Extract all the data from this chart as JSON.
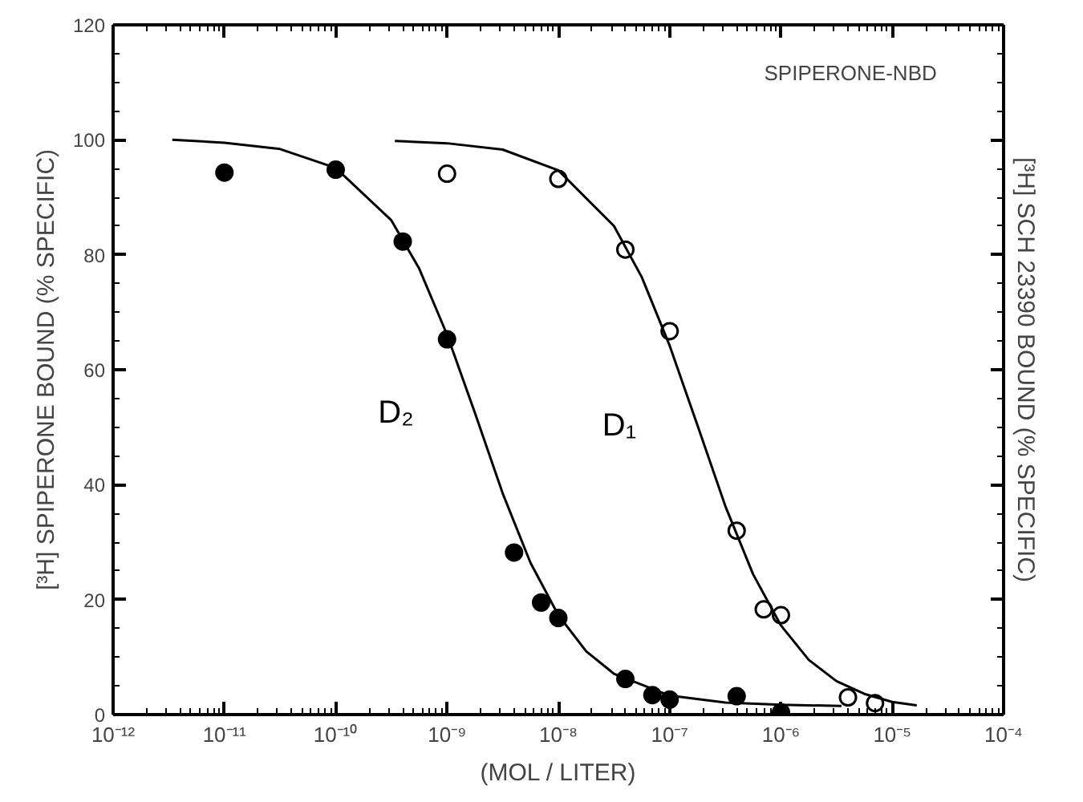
{
  "chart_data": {
    "type": "scatter",
    "annotations": [
      "SPIPERONE-NBD"
    ],
    "xlabel": "(MOL / LITER)",
    "ylabel": "[³H] SPIPERONE BOUND (% SPECIFIC)",
    "y2label": "[³H] SCH 23390 BOUND (% SPECIFIC)",
    "log": "x",
    "grid": false,
    "xlim": [
      1e-12,
      0.0001
    ],
    "xticks": [
      {
        "value": 1e-12,
        "label": "10⁻¹²"
      },
      {
        "value": 1e-11,
        "label": "10⁻¹¹"
      },
      {
        "value": 1e-10,
        "label": "10⁻¹⁰"
      },
      {
        "value": 1e-09,
        "label": "10⁻⁹"
      },
      {
        "value": 1e-08,
        "label": "10⁻⁸"
      },
      {
        "value": 1e-07,
        "label": "10⁻⁷"
      },
      {
        "value": 1e-06,
        "label": "10⁻⁶"
      },
      {
        "value": 1e-05,
        "label": "10⁻⁵"
      },
      {
        "value": 0.0001,
        "label": "10⁻⁴"
      }
    ],
    "ylim": [
      0,
      120
    ],
    "yticks": [
      0,
      20,
      40,
      60,
      80,
      100,
      120
    ],
    "series": [
      {
        "marker": "circle",
        "color": "#000000",
        "x": [
          1e-11,
          1e-10,
          4e-10,
          1e-09,
          4e-09,
          7e-09,
          1e-08,
          4e-08,
          7e-08,
          1e-07,
          4e-07,
          1e-06
        ],
        "values": [
          94.3,
          94.8,
          82.3,
          65.3,
          28.2,
          19.5,
          16.8,
          6.2,
          3.4,
          2.6,
          3.2,
          0.4
        ]
      },
      {
        "marker": "circle_open",
        "color": "#000000",
        "x": [
          1e-09,
          1e-08,
          4e-08,
          1e-07,
          4e-07,
          7e-07,
          1e-06,
          4e-06,
          7e-06
        ],
        "values": [
          94.1,
          93.2,
          80.9,
          66.7,
          32.0,
          18.3,
          17.3,
          3.0,
          2.0
        ]
      },
      {
        "type": "line",
        "name": "D₂",
        "color": "#000000",
        "line_style": "solid",
        "x": [
          3.4e-12,
          1e-11,
          3.16e-11,
          1e-10,
          3.16e-10,
          5.62e-10,
          1e-09,
          1.78e-09,
          3.16e-09,
          5.62e-09,
          1e-08,
          1.78e-08,
          3.16e-08,
          1e-07,
          3.16e-07,
          1e-06,
          3.5e-06
        ],
        "values": [
          100,
          99.5,
          98.4,
          95.1,
          86.0,
          77.6,
          66.1,
          52.5,
          38.5,
          26.4,
          17.3,
          11.0,
          7.1,
          3.3,
          2.1,
          1.7,
          1.5
        ]
      },
      {
        "type": "line",
        "name": "D₁",
        "color": "#000000",
        "line_style": "solid",
        "x": [
          3.4e-10,
          1e-09,
          3.16e-09,
          1e-08,
          3.16e-08,
          5.62e-08,
          1e-07,
          1.78e-07,
          3.16e-07,
          5.62e-07,
          1e-06,
          1.78e-06,
          3.16e-06,
          5.62e-06,
          1e-05,
          1.66e-05
        ],
        "values": [
          99.8,
          99.4,
          98.3,
          94.7,
          85.0,
          76.1,
          64.2,
          50.3,
          36.3,
          24.4,
          15.5,
          9.5,
          5.8,
          3.6,
          2.2,
          1.6
        ]
      }
    ]
  }
}
